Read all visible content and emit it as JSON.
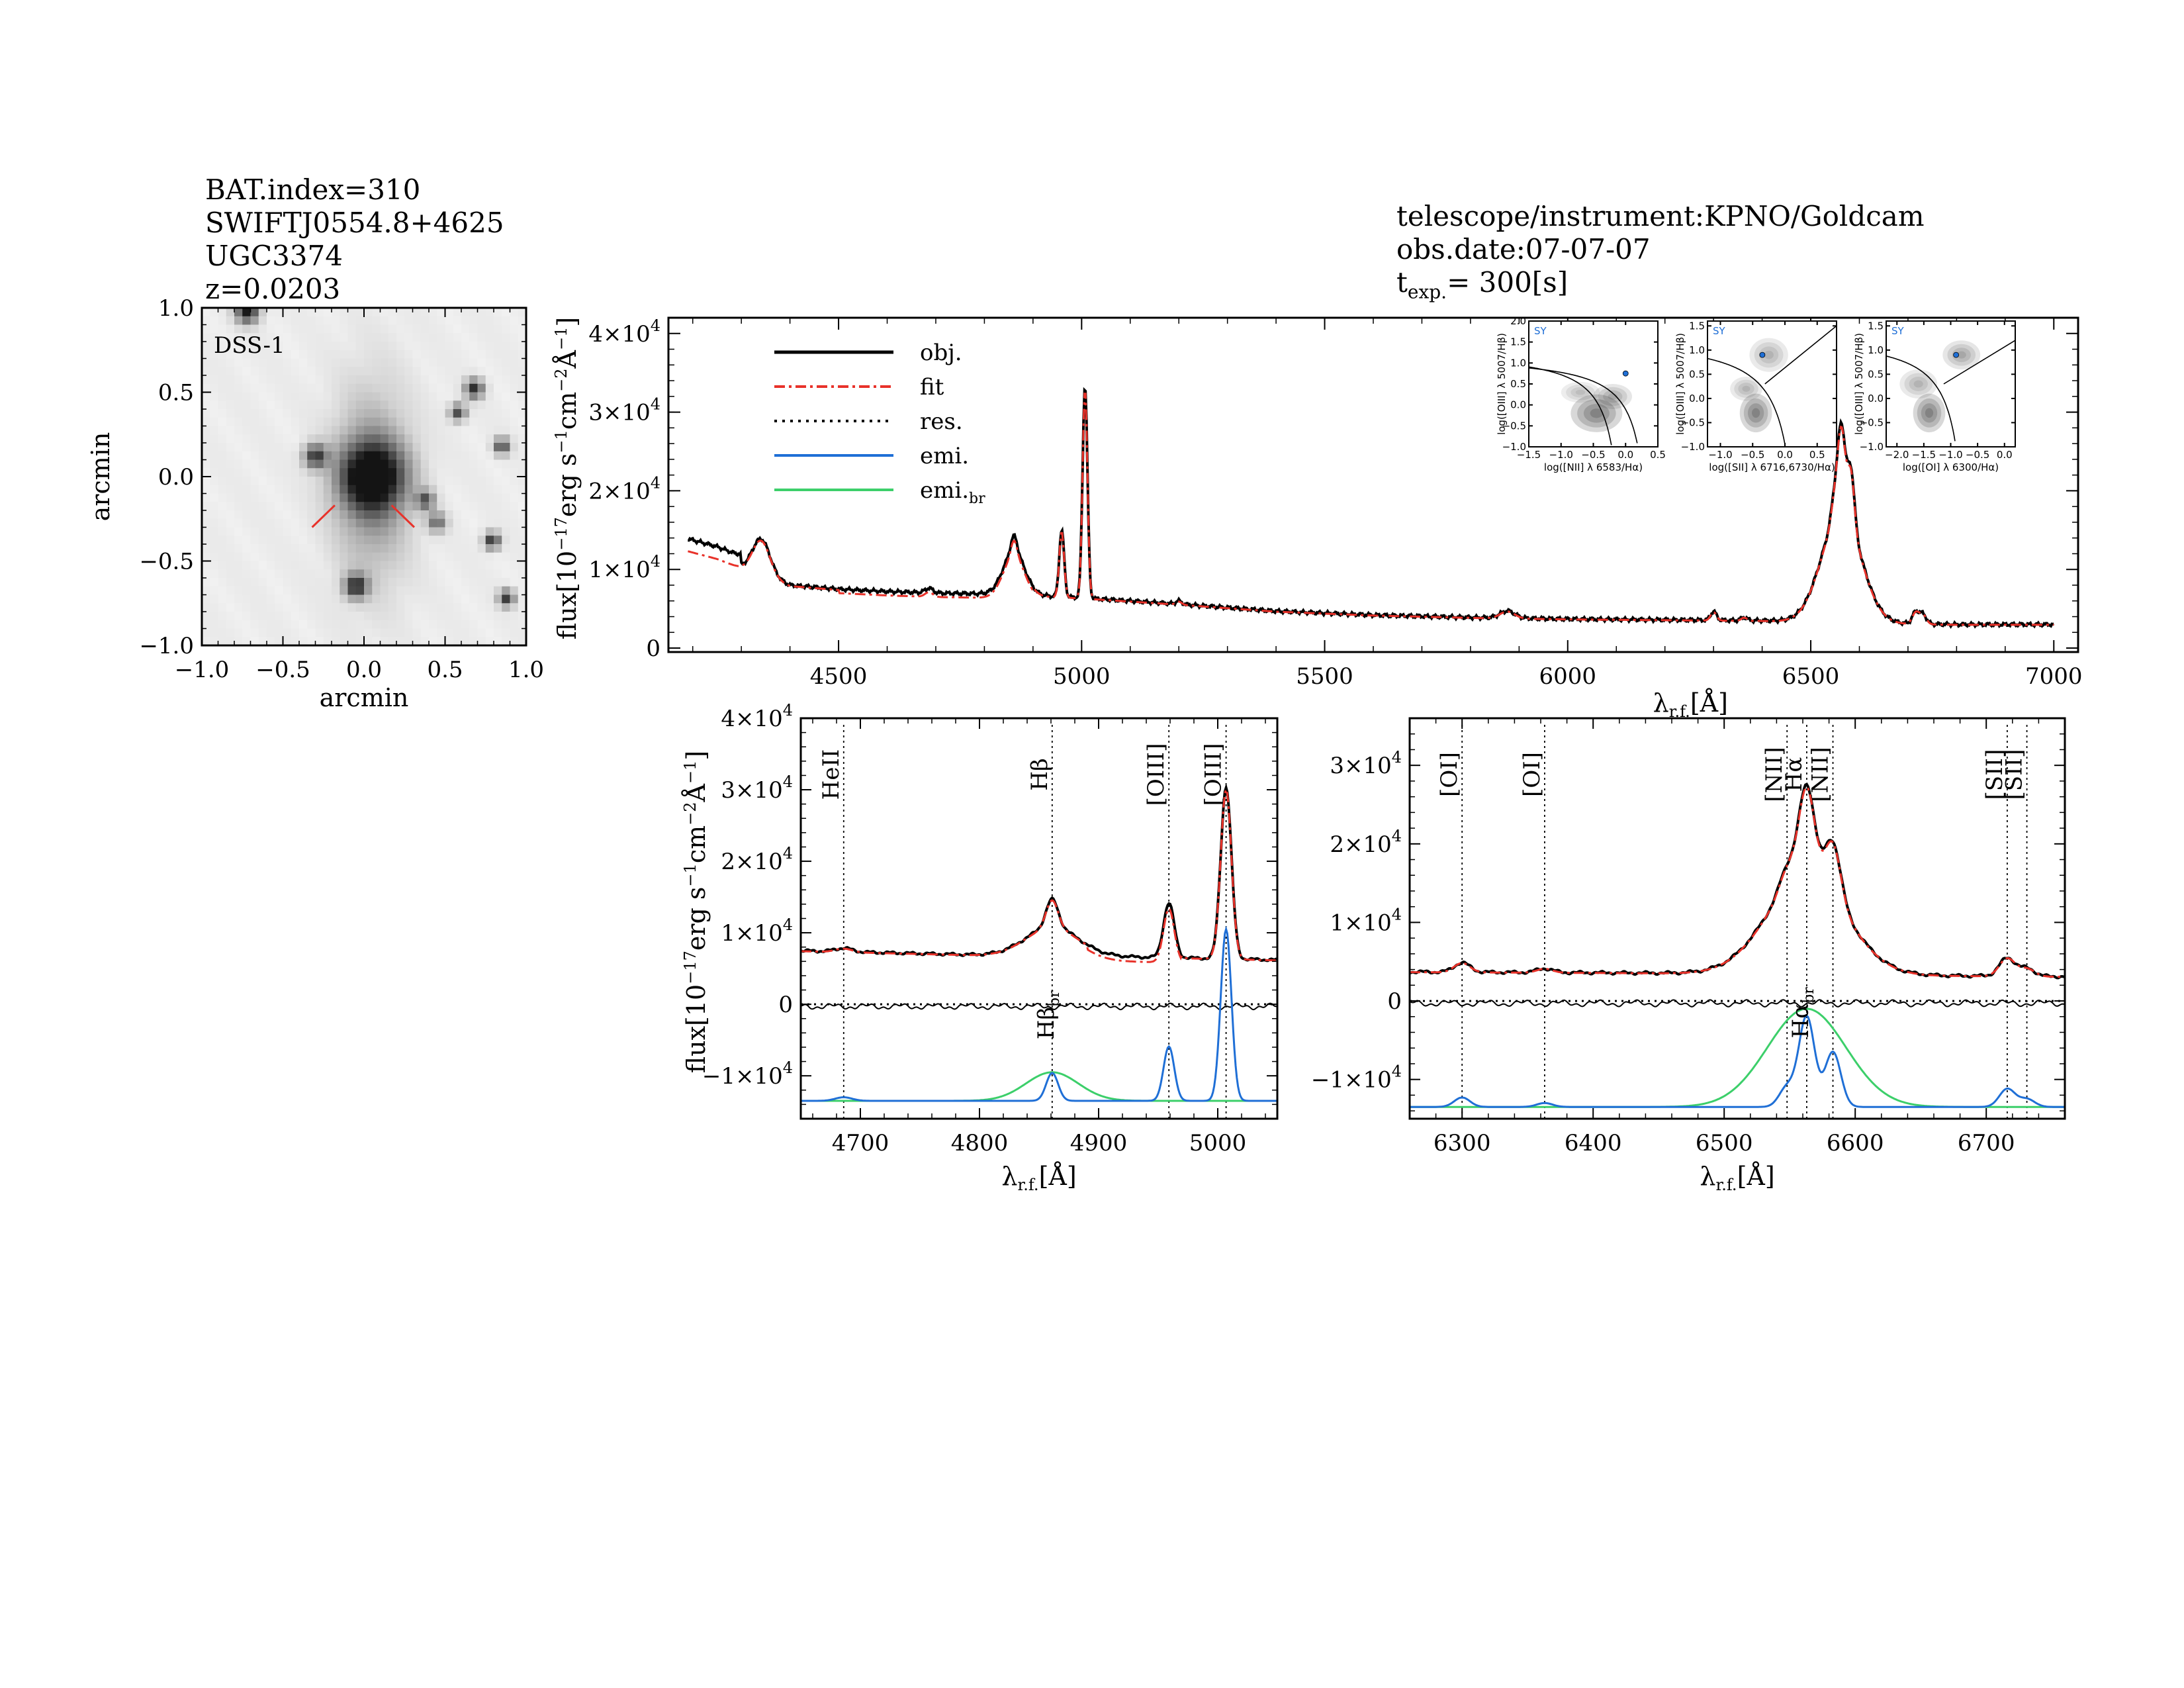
{
  "header_left": {
    "line1": "BAT.index=310",
    "line2": "SWIFTJ0554.8+4625",
    "line3": "UGC3374",
    "line4": "z=0.0203"
  },
  "header_right": {
    "line1": "telescope/instrument:KPNO/Goldcam",
    "line2": "obs.date:07-07-07",
    "texp_prefix": "t",
    "texp_sub": "exp.",
    "texp_value": "=  300[s]"
  },
  "colors": {
    "obj": "#000000",
    "fit": "#e8322a",
    "res": "#000000",
    "emi": "#1f6fd6",
    "emi_br": "#3ccf6a",
    "marker": "#e8322a"
  },
  "chart_data": [
    {
      "id": "dss_image",
      "type": "heatmap",
      "panel_label": "DSS-1",
      "xlabel": "arcmin",
      "ylabel": "arcmin",
      "xlim": [
        -1.0,
        1.0
      ],
      "ylim": [
        -1.0,
        1.0
      ],
      "xticks": [
        "−1.0",
        "−0.5",
        "0.0",
        "0.5",
        "1.0"
      ],
      "yticks": [
        "1.0",
        "0.5",
        "0.0",
        "−0.5",
        "−1.0"
      ],
      "sources": [
        {
          "x": 0.05,
          "y": 0.0,
          "r": 0.14,
          "peak": 0.95
        },
        {
          "x": -0.3,
          "y": 0.12,
          "r": 0.05,
          "peak": 0.75
        },
        {
          "x": -0.05,
          "y": -0.65,
          "r": 0.05,
          "peak": 0.8
        },
        {
          "x": 0.38,
          "y": -0.14,
          "r": 0.04,
          "peak": 0.6
        },
        {
          "x": 0.45,
          "y": -0.27,
          "r": 0.04,
          "peak": 0.55
        },
        {
          "x": 0.68,
          "y": 0.52,
          "r": 0.04,
          "peak": 0.8
        },
        {
          "x": 0.58,
          "y": 0.38,
          "r": 0.035,
          "peak": 0.7
        },
        {
          "x": 0.85,
          "y": 0.18,
          "r": 0.035,
          "peak": 0.7
        },
        {
          "x": 0.79,
          "y": -0.38,
          "r": 0.035,
          "peak": 0.8
        },
        {
          "x": 0.88,
          "y": -0.72,
          "r": 0.035,
          "peak": 0.75
        },
        {
          "x": -0.72,
          "y": 0.98,
          "r": 0.05,
          "peak": 0.9
        }
      ],
      "markers": [
        {
          "x1": -0.32,
          "y1": -0.3,
          "x2": -0.18,
          "y2": -0.17
        },
        {
          "x1": 0.17,
          "y1": -0.17,
          "x2": 0.31,
          "y2": -0.3
        }
      ]
    },
    {
      "id": "full_spectrum",
      "type": "line",
      "xlabel": "λr.f.[Å]",
      "ylabel": "flux[10⁻¹⁷erg s⁻¹cm⁻²Å⁻¹]",
      "xlim": [
        4150,
        7050
      ],
      "ylim": [
        -500,
        42000
      ],
      "xticks": [
        "4500",
        "5000",
        "5500",
        "6000",
        "6500",
        "7000"
      ],
      "yticks": [
        "0",
        "1×10⁴",
        "2×10⁴",
        "3×10⁴",
        "4×10⁴"
      ],
      "legend": [
        "obj.",
        "fit",
        "res.",
        "emi.",
        "emi.br"
      ],
      "continuum": [
        [
          4190,
          12500
        ],
        [
          4250,
          11500
        ],
        [
          4300,
          10300
        ],
        [
          4400,
          8000
        ],
        [
          4500,
          7500
        ],
        [
          4600,
          7200
        ],
        [
          4700,
          7000
        ],
        [
          4800,
          6900
        ],
        [
          4900,
          6700
        ],
        [
          5000,
          6400
        ],
        [
          5100,
          6000
        ],
        [
          5200,
          5600
        ],
        [
          5400,
          4700
        ],
        [
          5600,
          4200
        ],
        [
          5800,
          3900
        ],
        [
          6000,
          3700
        ],
        [
          6200,
          3600
        ],
        [
          6400,
          3500
        ],
        [
          6600,
          3200
        ],
        [
          6800,
          3000
        ],
        [
          7000,
          3000
        ]
      ],
      "lines": [
        {
          "c": 4341,
          "a": 4500,
          "s": 18
        },
        {
          "c": 4686,
          "a": 600,
          "s": 8
        },
        {
          "c": 4861,
          "a": 5500,
          "s": 22
        },
        {
          "c": 4861,
          "a": 2000,
          "s": 6
        },
        {
          "c": 4959,
          "a": 8500,
          "s": 5
        },
        {
          "c": 5007,
          "a": 27000,
          "s": 5
        },
        {
          "c": 5200,
          "a": 400,
          "s": 6
        },
        {
          "c": 5876,
          "a": 900,
          "s": 15
        },
        {
          "c": 6300,
          "a": 1100,
          "s": 6
        },
        {
          "c": 6363,
          "a": 400,
          "s": 6
        },
        {
          "c": 6563,
          "a": 14000,
          "s": 40
        },
        {
          "c": 6563,
          "a": 11000,
          "s": 8
        },
        {
          "c": 6583,
          "a": 7000,
          "s": 7
        },
        {
          "c": 6548,
          "a": 2300,
          "s": 7
        },
        {
          "c": 6716,
          "a": 1500,
          "s": 7
        },
        {
          "c": 6731,
          "a": 1200,
          "s": 7
        }
      ]
    },
    {
      "id": "bpt_nii",
      "type": "heatmap",
      "label": "SY",
      "xlabel": "log([NII] λ 6583/Hα)",
      "ylabel": "log([OIII] λ 5007/Hβ)",
      "xlim": [
        -1.5,
        0.5
      ],
      "ylim": [
        -1.0,
        2.0
      ],
      "xticks": [
        "−1.5",
        "−1.0",
        "−0.5",
        "0.0",
        "0.5"
      ],
      "yticks": [
        "2.0",
        "1.5",
        "1.0",
        "0.5",
        "0.0",
        "−0.5",
        "−1.0"
      ],
      "point": [
        0.0,
        0.75
      ]
    },
    {
      "id": "bpt_sii",
      "type": "heatmap",
      "label": "SY",
      "xlabel": "log([SII] λ 6716,6730/Hα)",
      "ylabel": "log([OIII] λ 5007/Hβ)",
      "xlim": [
        -1.2,
        0.8
      ],
      "ylim": [
        -1.0,
        1.6
      ],
      "xticks": [
        "−1.0",
        "−0.5",
        "0.0",
        "0.5"
      ],
      "yticks": [
        "1.5",
        "1.0",
        "0.5",
        "0.0",
        "−0.5",
        "−1.0"
      ],
      "point": [
        -0.35,
        0.9
      ]
    },
    {
      "id": "bpt_oi",
      "type": "heatmap",
      "label": "SY",
      "xlabel": "log([OI] λ 6300/Hα)",
      "ylabel": "log([OIII] λ 5007/Hβ)",
      "xlim": [
        -2.2,
        0.2
      ],
      "ylim": [
        -1.0,
        1.6
      ],
      "xticks": [
        "−2.0",
        "−1.5",
        "−1.0",
        "−0.5",
        "0.0"
      ],
      "yticks": [
        "1.5",
        "1.0",
        "0.5",
        "0.0",
        "−0.5",
        "−1.0"
      ],
      "point": [
        -0.9,
        0.9
      ]
    },
    {
      "id": "hbeta_zoom",
      "type": "line",
      "xlabel": "λr.f.[Å]",
      "ylabel": "flux[10⁻¹⁷erg s⁻¹cm⁻²Å⁻¹]",
      "xlim": [
        4650,
        5050
      ],
      "ylim": [
        -16000,
        40000
      ],
      "xticks": [
        "4700",
        "4800",
        "4900",
        "5000"
      ],
      "yticks": [
        "−1×10⁴",
        "0",
        "1×10⁴",
        "2×10⁴",
        "3×10⁴",
        "4×10⁴"
      ],
      "line_markers": [
        {
          "x": 4686,
          "label": "HeII"
        },
        {
          "x": 4861,
          "label": "Hβ"
        },
        {
          "x": 4959,
          "label": "[OIII]"
        },
        {
          "x": 5007,
          "label": "[OIII]"
        }
      ],
      "broad_label": "Hβbr",
      "baseline_offset": -13500,
      "continuum": [
        [
          4650,
          7500
        ],
        [
          4700,
          7300
        ],
        [
          4800,
          6900
        ],
        [
          4900,
          6700
        ],
        [
          5000,
          6400
        ],
        [
          5050,
          6200
        ]
      ],
      "lines": [
        {
          "c": 4686,
          "a": 500,
          "s": 7,
          "comp": "narrow"
        },
        {
          "c": 4861,
          "a": 4000,
          "s": 22,
          "comp": "broad"
        },
        {
          "c": 4861,
          "a": 3900,
          "s": 5,
          "comp": "narrow"
        },
        {
          "c": 4959,
          "a": 7600,
          "s": 4.5,
          "comp": "narrow"
        },
        {
          "c": 5007,
          "a": 24000,
          "s": 4.5,
          "comp": "narrow"
        }
      ]
    },
    {
      "id": "halpha_zoom",
      "type": "line",
      "xlabel": "λr.f.[Å]",
      "ylabel": "",
      "xlim": [
        6260,
        6760
      ],
      "ylim": [
        -15000,
        36000
      ],
      "xticks": [
        "6300",
        "6400",
        "6500",
        "6600",
        "6700"
      ],
      "yticks": [
        "−1×10⁴",
        "0",
        "1×10⁴",
        "2×10⁴",
        "3×10⁴"
      ],
      "line_markers": [
        {
          "x": 6300,
          "label": "[OI]"
        },
        {
          "x": 6363,
          "label": "[OI]"
        },
        {
          "x": 6548,
          "label": "[NII]"
        },
        {
          "x": 6563,
          "label": "Hα"
        },
        {
          "x": 6583,
          "label": "[NII]"
        },
        {
          "x": 6716,
          "label": "[SII]"
        },
        {
          "x": 6731,
          "label": "[SII]"
        }
      ],
      "broad_label": "Hαbr",
      "baseline_offset": -13500,
      "continuum": [
        [
          6260,
          3700
        ],
        [
          6400,
          3600
        ],
        [
          6500,
          3500
        ],
        [
          6600,
          3300
        ],
        [
          6760,
          3100
        ]
      ],
      "lines": [
        {
          "c": 6300,
          "a": 1200,
          "s": 6,
          "comp": "narrow"
        },
        {
          "c": 6363,
          "a": 500,
          "s": 6,
          "comp": "narrow"
        },
        {
          "c": 6563,
          "a": 12500,
          "s": 30,
          "comp": "broad"
        },
        {
          "c": 6563,
          "a": 11500,
          "s": 6,
          "comp": "narrow"
        },
        {
          "c": 6583,
          "a": 7000,
          "s": 6,
          "comp": "narrow"
        },
        {
          "c": 6548,
          "a": 2500,
          "s": 6,
          "comp": "narrow"
        },
        {
          "c": 6716,
          "a": 2300,
          "s": 6,
          "comp": "narrow"
        },
        {
          "c": 6731,
          "a": 1000,
          "s": 6,
          "comp": "narrow"
        }
      ]
    }
  ]
}
